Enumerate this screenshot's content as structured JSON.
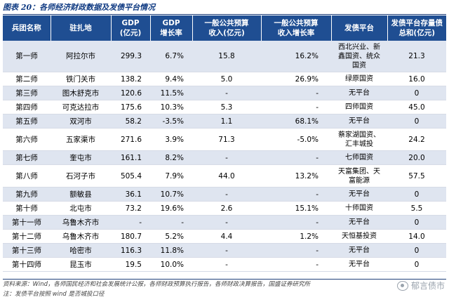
{
  "figure": {
    "title": "图表 20：各师经济财政数据及发债平台情况",
    "source": "资料来源：Wind，各师国民经济和社会发展统计公报，各师财政预算执行报告，各师财政决算报告，国盛证券研究所",
    "note": "注：发债平台按照 wind 是否城投口径",
    "watermark": "郁言债市"
  },
  "table": {
    "headers": [
      [
        "兵团名称"
      ],
      [
        "驻扎地"
      ],
      [
        "GDP",
        "(亿元)"
      ],
      [
        "GDP",
        "增长率"
      ],
      [
        "一般公共预算",
        "收入(亿元)"
      ],
      [
        "一般公共预算",
        "收入增长率"
      ],
      [
        "发债平台"
      ],
      [
        "发债平台存量债",
        "总和(亿元)"
      ]
    ],
    "rows": [
      {
        "name": "第一师",
        "station": "阿拉尔市",
        "gdp": "299.3",
        "gdp_growth": "6.7%",
        "budget": "15.8",
        "budget_growth": "16.2%",
        "platform": [
          "西北兴业、新",
          "鑫国资、统众",
          "国资"
        ],
        "stock": "21.3"
      },
      {
        "name": "第二师",
        "station": "铁门关市",
        "gdp": "138.2",
        "gdp_growth": "9.4%",
        "budget": "5.0",
        "budget_growth": "26.9%",
        "platform": [
          "绿原国资"
        ],
        "stock": "16.0"
      },
      {
        "name": "第三师",
        "station": "图木舒克市",
        "gdp": "120.6",
        "gdp_growth": "11.5%",
        "budget": "-",
        "budget_growth": "-",
        "platform": [
          "无平台"
        ],
        "stock": "0"
      },
      {
        "name": "第四师",
        "station": "可克达拉市",
        "gdp": "175.6",
        "gdp_growth": "10.3%",
        "budget": "5.3",
        "budget_growth": "-",
        "platform": [
          "四师国资"
        ],
        "stock": "45.0"
      },
      {
        "name": "第五师",
        "station": "双河市",
        "gdp": "58.2",
        "gdp_growth": "-3.5%",
        "budget": "1.1",
        "budget_growth": "68.1%",
        "platform": [
          "无平台"
        ],
        "stock": "0"
      },
      {
        "name": "第六师",
        "station": "五家渠市",
        "gdp": "271.6",
        "gdp_growth": "3.9%",
        "budget": "71.3",
        "budget_growth": "-5.0%",
        "platform": [
          "蔡家湖国资、",
          "汇丰城投"
        ],
        "stock": "24.2"
      },
      {
        "name": "第七师",
        "station": "奎屯市",
        "gdp": "161.1",
        "gdp_growth": "8.2%",
        "budget": "-",
        "budget_growth": "-",
        "platform": [
          "七师国资"
        ],
        "stock": "20.0"
      },
      {
        "name": "第八师",
        "station": "石河子市",
        "gdp": "505.4",
        "gdp_growth": "7.9%",
        "budget": "44.0",
        "budget_growth": "13.2%",
        "platform": [
          "天富集团、天",
          "富能源"
        ],
        "stock": "57.5"
      },
      {
        "name": "第九师",
        "station": "额敏县",
        "gdp": "36.1",
        "gdp_growth": "10.7%",
        "budget": "-",
        "budget_growth": "-",
        "platform": [
          "无平台"
        ],
        "stock": "0"
      },
      {
        "name": "第十师",
        "station": "北屯市",
        "gdp": "73.2",
        "gdp_growth": "19.6%",
        "budget": "2.6",
        "budget_growth": "15.1%",
        "platform": [
          "十师国资"
        ],
        "stock": "5.5"
      },
      {
        "name": "第十一师",
        "station": "乌鲁木齐市",
        "gdp": "-",
        "gdp_growth": "-",
        "budget": "-",
        "budget_growth": "-",
        "platform": [
          "无平台"
        ],
        "stock": "0"
      },
      {
        "name": "第十二师",
        "station": "乌鲁木齐市",
        "gdp": "180.7",
        "gdp_growth": "5.2%",
        "budget": "4.4",
        "budget_growth": "1.2%",
        "platform": [
          "天恒基投资"
        ],
        "stock": "14.0"
      },
      {
        "name": "第十三师",
        "station": "哈密市",
        "gdp": "116.3",
        "gdp_growth": "11.8%",
        "budget": "-",
        "budget_growth": "-",
        "platform": [
          "无平台"
        ],
        "stock": "0"
      },
      {
        "name": "第十四师",
        "station": "昆玉市",
        "gdp": "19.5",
        "gdp_growth": "10.0%",
        "budget": "-",
        "budget_growth": "-",
        "platform": [
          "无平台"
        ],
        "stock": "0"
      }
    ]
  }
}
